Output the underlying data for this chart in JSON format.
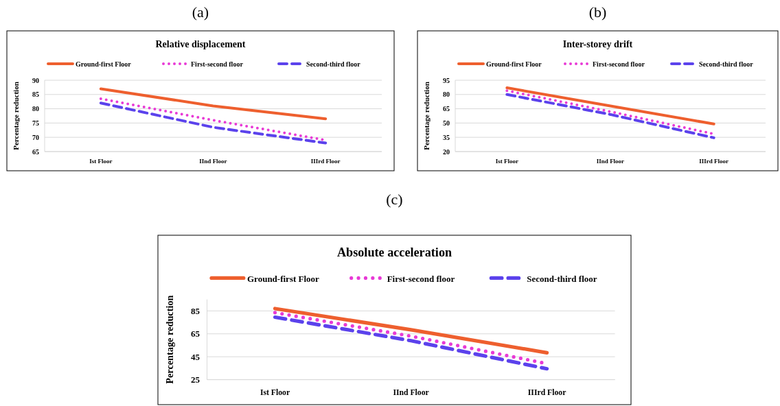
{
  "chart_data": [
    {
      "type": "line",
      "subtitle": "(a)",
      "title": "Relative displacement",
      "ylabel": "Percentage reduction",
      "categories": [
        "Ist Floor",
        "IInd Floor",
        "IIIrd Floor"
      ],
      "ylim": [
        65,
        90
      ],
      "yticks": [
        65,
        70,
        75,
        80,
        85,
        90
      ],
      "grid": "y",
      "legend": "top",
      "series": [
        {
          "name": "Ground-first Floor",
          "color": "#ee5f2e",
          "line_style": "solid",
          "values": [
            87,
            81,
            76.5
          ]
        },
        {
          "name": "First-second floor",
          "color": "#e83ad6",
          "line_style": "dotted",
          "values": [
            83.5,
            76,
            69
          ]
        },
        {
          "name": "Second-third floor",
          "color": "#5b42ec",
          "line_style": "dashed",
          "values": [
            82,
            73.5,
            68
          ]
        }
      ]
    },
    {
      "type": "line",
      "subtitle": "(b)",
      "title": "Inter-storey drift",
      "ylabel": "Percentage reduction",
      "categories": [
        "Ist Floor",
        "IInd Floor",
        "IIIrd Floor"
      ],
      "ylim": [
        20,
        95
      ],
      "yticks": [
        20,
        35,
        50,
        65,
        80,
        95
      ],
      "grid": "y",
      "legend": "top",
      "series": [
        {
          "name": "Ground-first Floor",
          "color": "#ee5f2e",
          "line_style": "solid",
          "values": [
            87,
            68,
            49
          ]
        },
        {
          "name": "First-second floor",
          "color": "#e83ad6",
          "line_style": "dotted",
          "values": [
            84,
            62,
            38.5
          ]
        },
        {
          "name": "Second-third floor",
          "color": "#5b42ec",
          "line_style": "dashed",
          "values": [
            80,
            59,
            34.5
          ]
        }
      ]
    },
    {
      "type": "line",
      "subtitle": "(c)",
      "title": "Absolute acceleration",
      "ylabel": "Percentage reduction",
      "categories": [
        "Ist Floor",
        "IInd Floor",
        "IIIrd Floor"
      ],
      "ylim": [
        25,
        95
      ],
      "yticks": [
        25,
        45,
        65,
        85
      ],
      "grid": "y",
      "legend": "top",
      "series": [
        {
          "name": "Ground-first Floor",
          "color": "#ee5f2e",
          "line_style": "solid",
          "values": [
            87,
            68.5,
            48.5
          ]
        },
        {
          "name": "First-second floor",
          "color": "#e83ad6",
          "line_style": "dotted",
          "values": [
            83.5,
            63,
            39
          ]
        },
        {
          "name": "Second-third floor",
          "color": "#5b42ec",
          "line_style": "dashed",
          "values": [
            79.5,
            59,
            34.5
          ]
        }
      ]
    }
  ]
}
